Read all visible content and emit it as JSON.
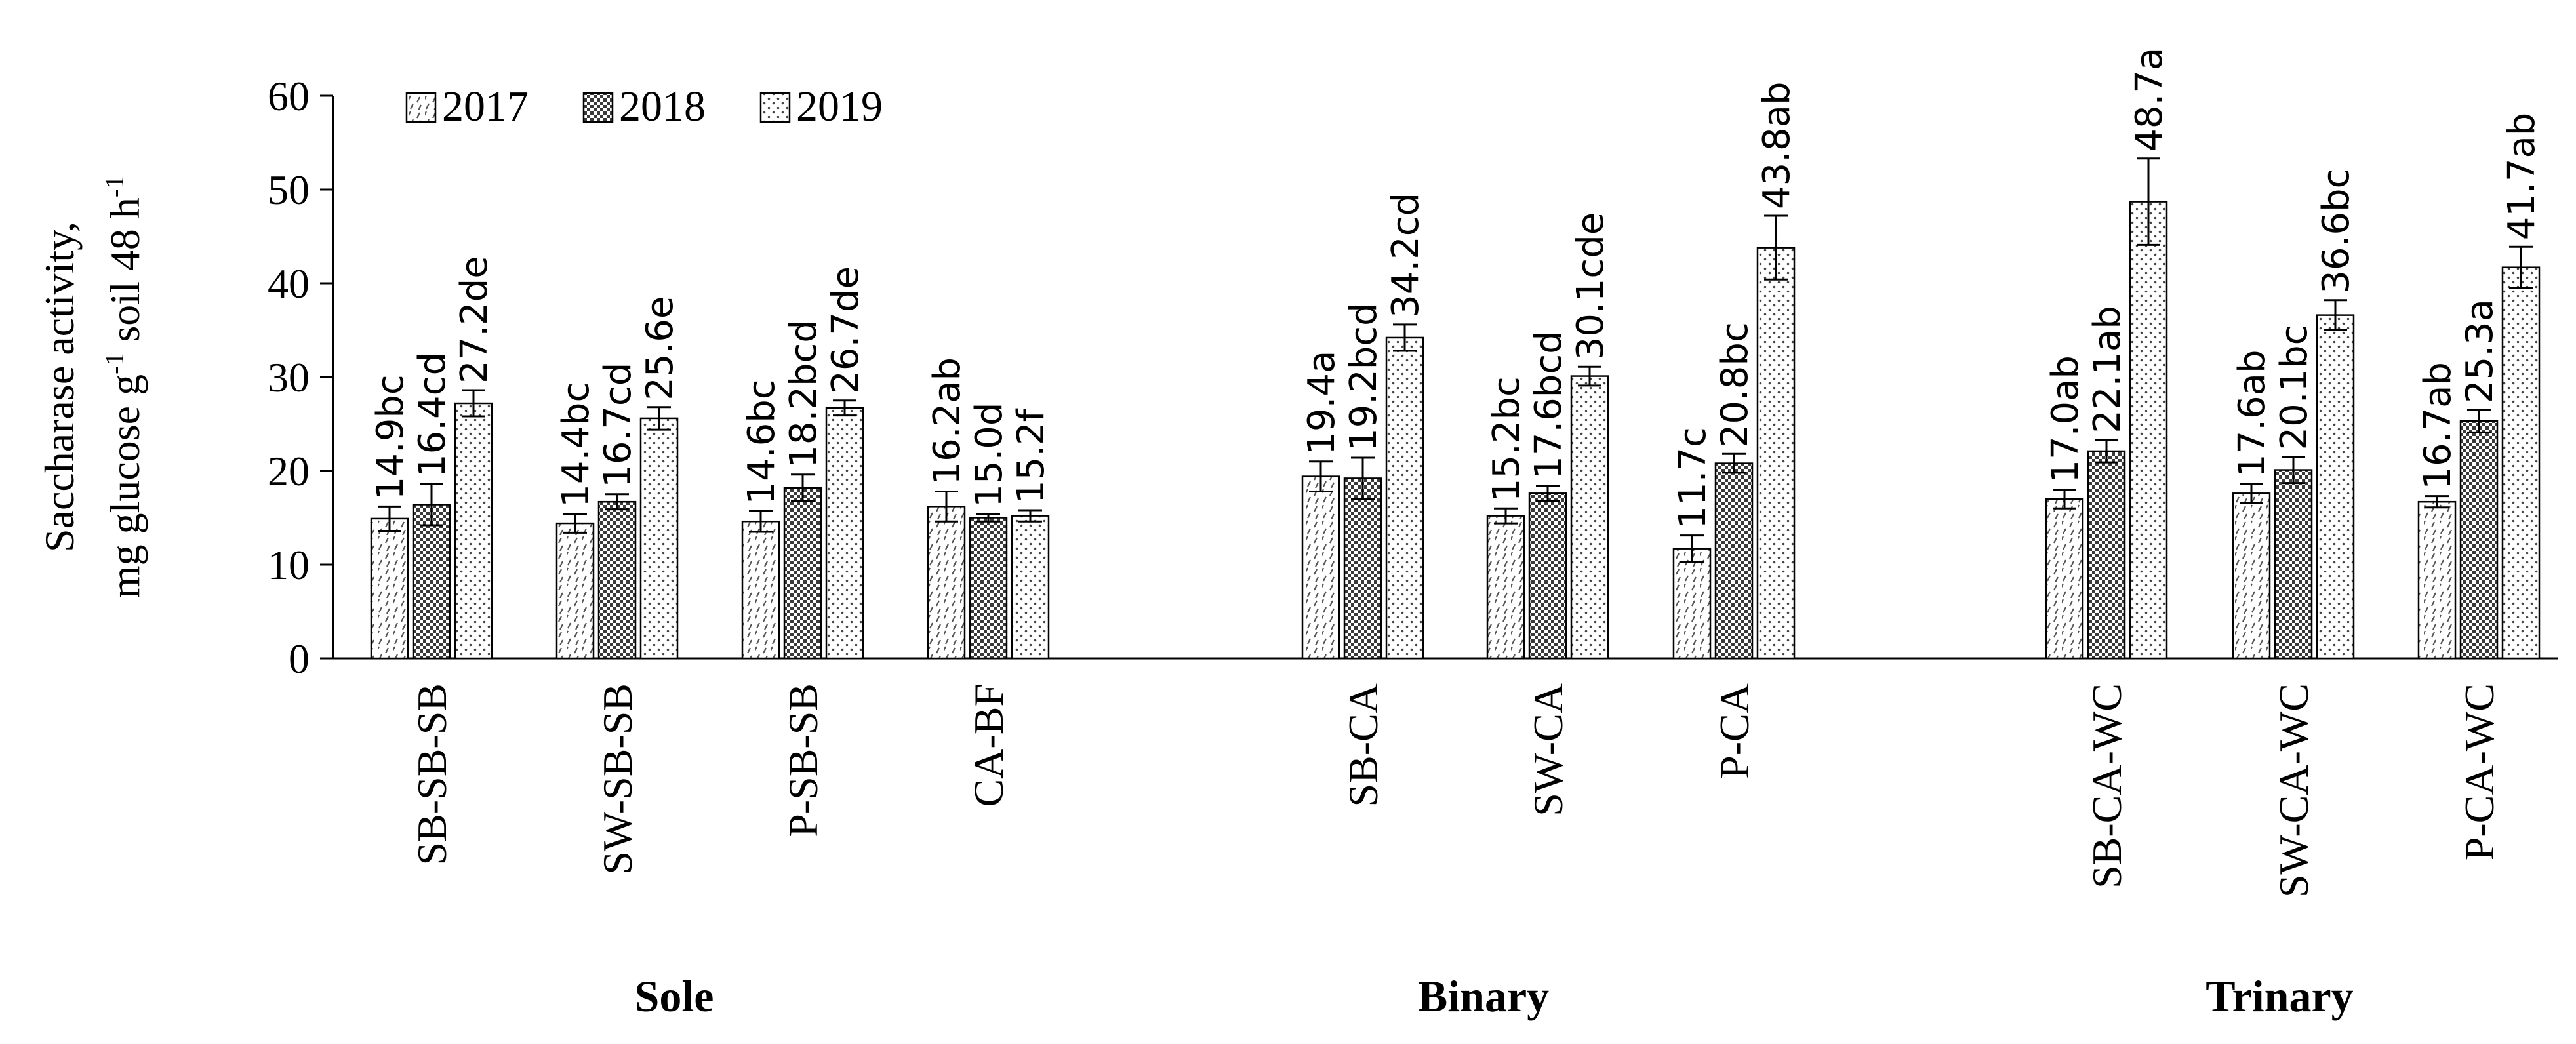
{
  "chart_data": {
    "type": "bar",
    "ylabel_line1": "Saccharase activity,",
    "ylabel_line2_parts": [
      "mg glucose g",
      "-1",
      " soil 48 h",
      "-1"
    ],
    "ylim": [
      0,
      60
    ],
    "yticks": [
      "0",
      "10",
      "20",
      "30",
      "40",
      "50",
      "60"
    ],
    "legend": [
      "2017",
      "2018",
      "2019"
    ],
    "legend_position": "top-left",
    "groups": [
      {
        "name": "Sole",
        "categories": [
          "SB-SB-SB",
          "SW-SB-SB",
          "P-SB-SB",
          "CA-BF"
        ]
      },
      {
        "name": "Binary",
        "categories": [
          "SB-CA",
          "SW-CA",
          "P-CA"
        ]
      },
      {
        "name": "Trinary",
        "categories": [
          "SB-CA-WC",
          "SW-CA-WC",
          "P-CA-WC"
        ]
      }
    ],
    "categories": [
      "SB-SB-SB",
      "SW-SB-SB",
      "P-SB-SB",
      "CA-BF",
      "SB-CA",
      "SW-CA",
      "P-CA",
      "SB-CA-WC",
      "SW-CA-WC",
      "P-CA-WC"
    ],
    "series": [
      {
        "name": "2017",
        "values": [
          14.9,
          14.4,
          14.6,
          16.2,
          19.4,
          15.2,
          11.7,
          17.0,
          17.6,
          16.7
        ],
        "errors": [
          1.3,
          1.0,
          1.1,
          1.6,
          1.6,
          0.8,
          1.4,
          1.0,
          1.0,
          0.6
        ],
        "labels": [
          "14.9bc",
          "14.4bc",
          "14.6bc",
          "16.2ab",
          "19.4a",
          "15.2bc",
          "11.7c",
          "17.0ab",
          "17.6ab",
          "16.7ab"
        ]
      },
      {
        "name": "2018",
        "values": [
          16.4,
          16.7,
          18.2,
          15.0,
          19.2,
          17.6,
          20.8,
          22.1,
          20.1,
          25.3
        ],
        "errors": [
          2.2,
          0.8,
          1.4,
          0.4,
          2.2,
          0.8,
          1.0,
          1.2,
          1.4,
          1.2
        ],
        "labels": [
          "16.4cd",
          "16.7cd",
          "18.2bcd",
          "15.0d",
          "19.2bcd",
          "17.6bcd",
          "20.8bc",
          "22.1ab",
          "20.1bc",
          "25.3a"
        ]
      },
      {
        "name": "2019",
        "values": [
          27.2,
          25.6,
          26.7,
          15.2,
          34.2,
          30.1,
          43.8,
          48.7,
          36.6,
          41.7
        ],
        "errors": [
          1.4,
          1.2,
          0.8,
          0.6,
          1.4,
          1.0,
          3.4,
          4.6,
          1.6,
          2.2
        ],
        "labels": [
          "27.2de",
          "25.6e",
          "26.7de",
          "15.2f",
          "34.2cd",
          "30.1cde",
          "43.8ab",
          "48.7a",
          "36.6bc",
          "41.7ab"
        ]
      }
    ]
  }
}
